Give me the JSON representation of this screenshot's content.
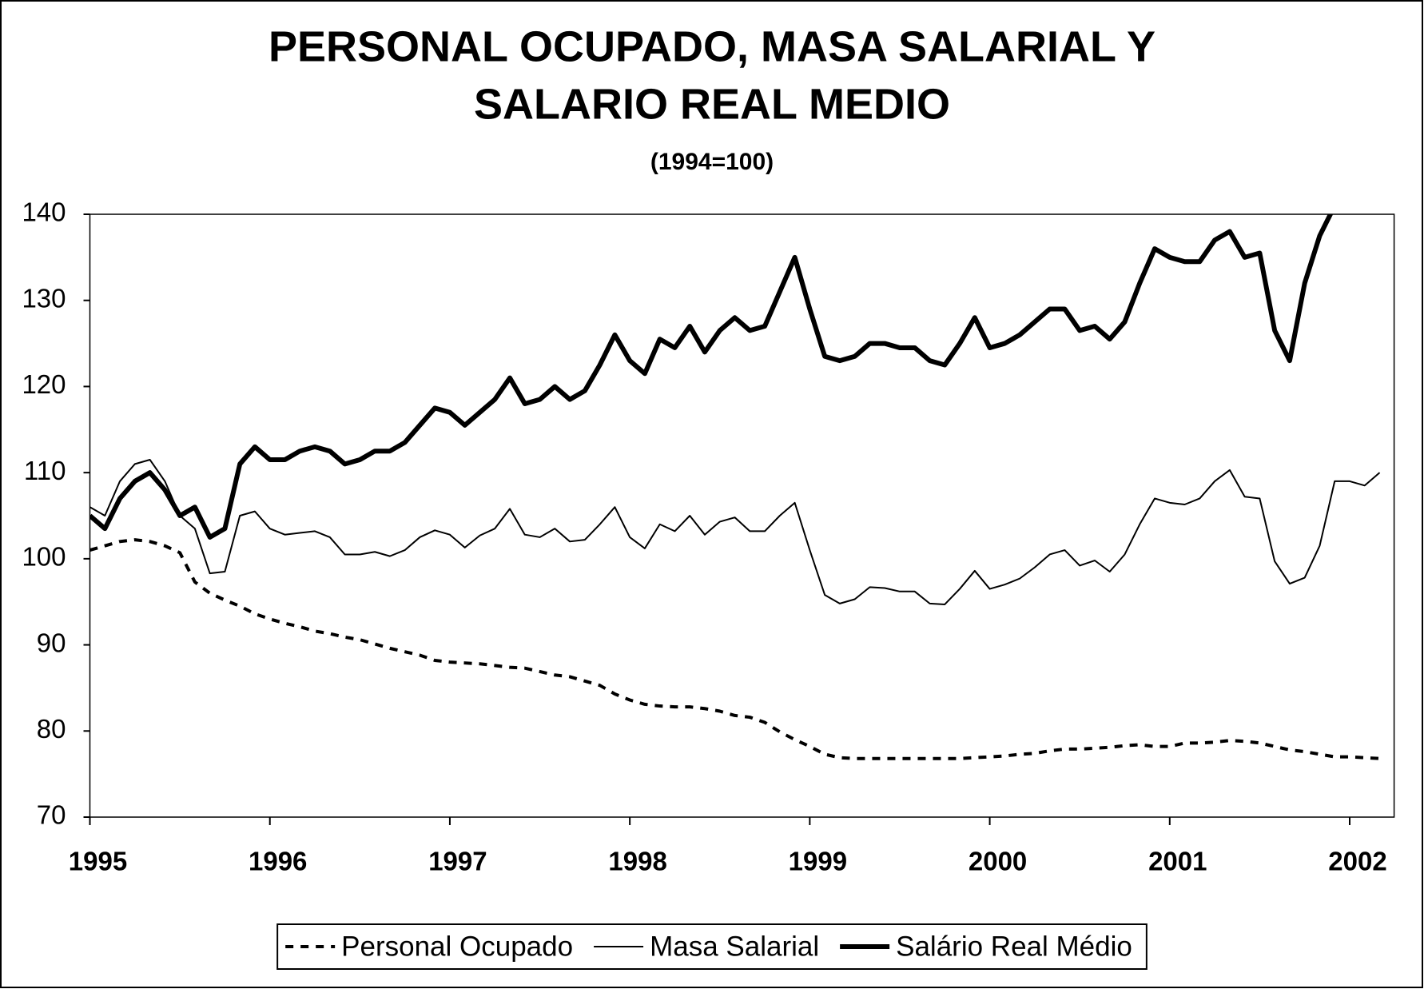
{
  "chart_data": {
    "type": "line",
    "title": [
      "PERSONAL OCUPADO, MASA SALARIAL Y",
      "SALARIO REAL MEDIO"
    ],
    "subtitle": "(1994=100)",
    "categories": [
      "1995",
      null,
      null,
      null,
      null,
      null,
      null,
      null,
      null,
      null,
      null,
      null,
      "1996",
      null,
      null,
      null,
      null,
      null,
      null,
      null,
      null,
      null,
      null,
      null,
      "1997",
      null,
      null,
      null,
      null,
      null,
      null,
      null,
      null,
      null,
      null,
      null,
      "1998",
      null,
      null,
      null,
      null,
      null,
      null,
      null,
      null,
      null,
      null,
      null,
      "1999",
      null,
      null,
      null,
      null,
      null,
      null,
      null,
      null,
      null,
      null,
      null,
      "2000",
      null,
      null,
      null,
      null,
      null,
      null,
      null,
      null,
      null,
      null,
      null,
      "2001",
      null,
      null,
      null,
      null,
      null,
      null,
      null,
      null,
      null,
      null,
      null,
      "2002",
      null,
      null
    ],
    "ylim": [
      70,
      140
    ],
    "yticks": [
      70,
      80,
      90,
      100,
      110,
      120,
      130,
      140
    ],
    "legend": "bottom",
    "series": [
      {
        "name": "Personal Ocupado",
        "color": "#000000",
        "style": "dashed",
        "width": 4,
        "values": [
          101,
          101.5,
          102,
          102.2,
          102,
          101.5,
          100.7,
          97.3,
          96,
          95.2,
          94.5,
          93.6,
          93,
          92.5,
          92.1,
          91.6,
          91.3,
          90.9,
          90.6,
          90.1,
          89.6,
          89.2,
          88.8,
          88.2,
          88,
          87.9,
          87.8,
          87.6,
          87.4,
          87.3,
          86.9,
          86.5,
          86.3,
          85.8,
          85.3,
          84.3,
          83.6,
          83.1,
          82.9,
          82.8,
          82.8,
          82.6,
          82.3,
          81.8,
          81.6,
          81,
          79.9,
          79,
          78.2,
          77.3,
          76.9,
          76.8,
          76.8,
          76.8,
          76.8,
          76.8,
          76.8,
          76.8,
          76.8,
          76.9,
          77,
          77.1,
          77.3,
          77.4,
          77.7,
          77.9,
          77.9,
          78,
          78.1,
          78.3,
          78.4,
          78.2,
          78.2,
          78.6,
          78.6,
          78.7,
          78.9,
          78.8,
          78.6,
          78.2,
          77.8,
          77.6,
          77.3,
          77,
          77,
          76.9,
          76.8
        ]
      },
      {
        "name": "Masa Salarial",
        "color": "#000000",
        "style": "solid",
        "width": 2,
        "values": [
          106,
          105,
          109,
          111,
          111.5,
          109,
          105,
          103.5,
          98.3,
          98.5,
          105,
          105.5,
          103.5,
          102.8,
          103,
          103.2,
          102.5,
          100.5,
          100.5,
          100.8,
          100.3,
          101,
          102.5,
          103.3,
          102.8,
          101.3,
          102.7,
          103.5,
          105.8,
          102.8,
          102.5,
          103.5,
          102,
          102.2,
          104,
          106,
          102.5,
          101.2,
          104,
          103.2,
          105,
          102.8,
          104.3,
          104.8,
          103.2,
          103.2,
          105,
          106.5,
          101,
          95.8,
          94.8,
          95.3,
          96.7,
          96.6,
          96.2,
          96.2,
          94.8,
          94.7,
          96.5,
          98.6,
          96.5,
          97,
          97.7,
          99,
          100.5,
          101,
          99.2,
          99.8,
          98.5,
          100.5,
          104,
          107,
          106.5,
          106.3,
          107,
          109,
          110.3,
          107.2,
          107,
          99.7,
          97.1,
          97.8,
          101.5,
          109,
          109,
          108.5,
          110
        ]
      },
      {
        "name": "Salário Real Médio",
        "color": "#000000",
        "style": "solid",
        "width": 6,
        "values": [
          105,
          103.5,
          107,
          109,
          110,
          108,
          105,
          106,
          102.5,
          103.5,
          111,
          113,
          111.5,
          111.5,
          112.5,
          113,
          112.5,
          111,
          111.5,
          112.5,
          112.5,
          113.5,
          115.5,
          117.5,
          117,
          115.5,
          117,
          118.5,
          121,
          118,
          118.5,
          120,
          118.5,
          119.5,
          122.5,
          126,
          123,
          121.5,
          125.5,
          124.5,
          127,
          124,
          126.5,
          128,
          126.5,
          127,
          131,
          135,
          129,
          123.5,
          123,
          123.5,
          125,
          125,
          124.5,
          124.5,
          123,
          122.5,
          125,
          128,
          124.5,
          125,
          126,
          127.5,
          129,
          129,
          126.5,
          127,
          125.5,
          127.5,
          132,
          136,
          135,
          134.5,
          134.5,
          137,
          138,
          135,
          135.5,
          126.5,
          123,
          132,
          137.5,
          141,
          null,
          null,
          null
        ]
      }
    ]
  }
}
